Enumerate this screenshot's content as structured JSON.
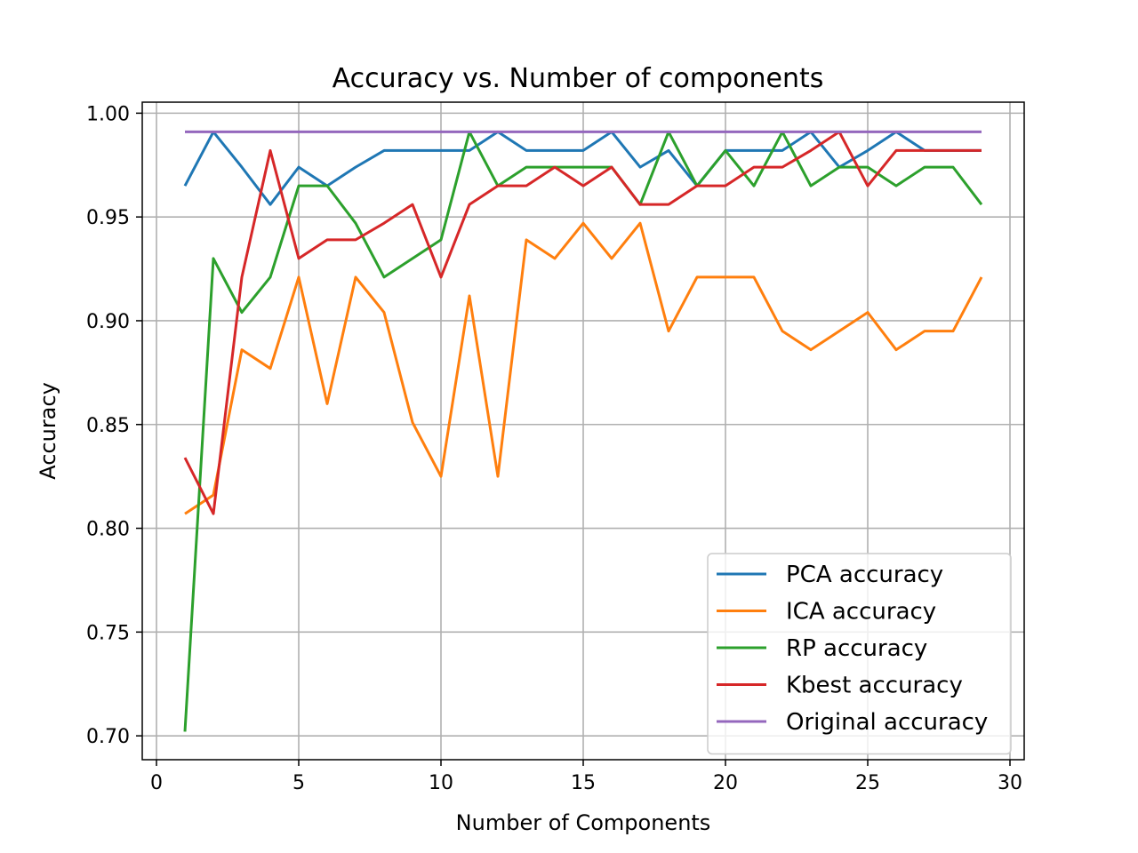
{
  "chart_data": {
    "type": "line",
    "title": "Accuracy  vs. Number of components",
    "xlabel": "Number of Components",
    "ylabel": "Accuracy",
    "xlim": [
      -0.5,
      30.5
    ],
    "ylim": [
      0.6885,
      1.0053
    ],
    "xticks": [
      0,
      5,
      10,
      15,
      20,
      25,
      30
    ],
    "xtick_labels": [
      "0",
      "5",
      "10",
      "15",
      "20",
      "25",
      "30"
    ],
    "yticks": [
      0.7,
      0.75,
      0.8,
      0.85,
      0.9,
      0.95,
      1.0
    ],
    "ytick_labels": [
      "0.70",
      "0.75",
      "0.80",
      "0.85",
      "0.90",
      "0.95",
      "1.00"
    ],
    "grid": true,
    "legend_position": "lower-right",
    "x": [
      1,
      2,
      3,
      4,
      5,
      6,
      7,
      8,
      9,
      10,
      11,
      12,
      13,
      14,
      15,
      16,
      17,
      18,
      19,
      20,
      21,
      22,
      23,
      24,
      25,
      26,
      27,
      28,
      29
    ],
    "series": [
      {
        "name": "PCA accuracy",
        "color": "#1f77b4",
        "values": [
          0.965,
          0.991,
          0.974,
          0.956,
          0.974,
          0.965,
          0.974,
          0.982,
          0.982,
          0.982,
          0.982,
          0.991,
          0.982,
          0.982,
          0.982,
          0.991,
          0.974,
          0.982,
          0.965,
          0.982,
          0.982,
          0.982,
          0.991,
          0.974,
          0.982,
          0.991,
          0.982,
          0.982,
          0.982
        ]
      },
      {
        "name": "ICA accuracy",
        "color": "#ff7f0e",
        "values": [
          0.807,
          0.816,
          0.886,
          0.877,
          0.921,
          0.86,
          0.921,
          0.904,
          0.851,
          0.825,
          0.912,
          0.825,
          0.939,
          0.93,
          0.947,
          0.93,
          0.947,
          0.895,
          0.921,
          0.921,
          0.921,
          0.895,
          0.886,
          0.895,
          0.904,
          0.886,
          0.895,
          0.895,
          0.921
        ]
      },
      {
        "name": "RP accuracy",
        "color": "#2ca02c",
        "values": [
          0.702,
          0.93,
          0.904,
          0.921,
          0.965,
          0.965,
          0.947,
          0.921,
          0.93,
          0.939,
          0.991,
          0.965,
          0.974,
          0.974,
          0.974,
          0.974,
          0.956,
          0.991,
          0.965,
          0.982,
          0.965,
          0.991,
          0.965,
          0.974,
          0.974,
          0.965,
          0.974,
          0.974,
          0.956
        ]
      },
      {
        "name": "Kbest accuracy",
        "color": "#d62728",
        "values": [
          0.834,
          0.807,
          0.921,
          0.982,
          0.93,
          0.939,
          0.939,
          0.947,
          0.956,
          0.921,
          0.956,
          0.965,
          0.965,
          0.974,
          0.965,
          0.974,
          0.956,
          0.956,
          0.965,
          0.965,
          0.974,
          0.974,
          0.982,
          0.991,
          0.965,
          0.982,
          0.982,
          0.982,
          0.982
        ]
      },
      {
        "name": "Original accuracy",
        "color": "#9467bd",
        "values": [
          0.991,
          0.991,
          0.991,
          0.991,
          0.991,
          0.991,
          0.991,
          0.991,
          0.991,
          0.991,
          0.991,
          0.991,
          0.991,
          0.991,
          0.991,
          0.991,
          0.991,
          0.991,
          0.991,
          0.991,
          0.991,
          0.991,
          0.991,
          0.991,
          0.991,
          0.991,
          0.991,
          0.991,
          0.991
        ]
      }
    ]
  }
}
